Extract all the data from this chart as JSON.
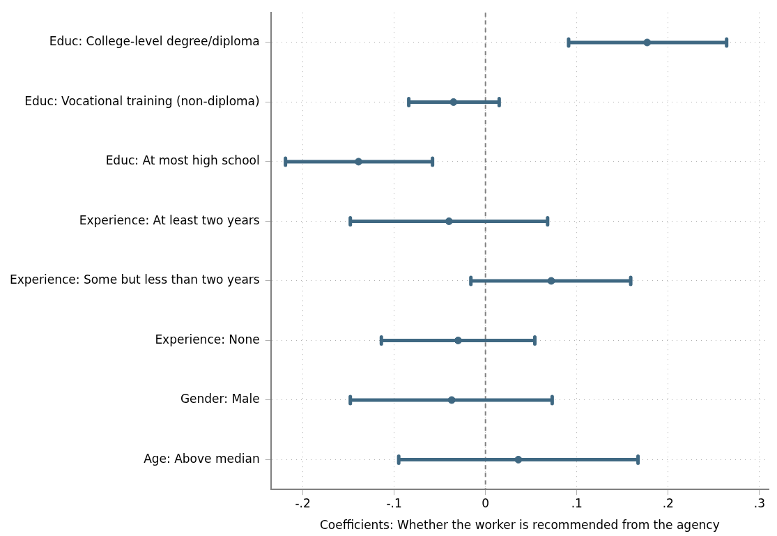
{
  "chart_data": {
    "type": "scatter",
    "orientation": "horizontal",
    "categories": [
      "Educ: College-level degree/diploma",
      "Educ: Vocational training (non-diploma)",
      "Educ: At most high school",
      "Experience: At least two years",
      "Experience: Some but less than two years",
      "Experience: None",
      "Gender: Male",
      "Age: Above median"
    ],
    "values": [
      0.177,
      -0.035,
      -0.139,
      -0.04,
      0.072,
      -0.03,
      -0.037,
      0.036
    ],
    "errors": [
      [
        0.091,
        0.264
      ],
      [
        -0.084,
        0.015
      ],
      [
        -0.219,
        -0.058
      ],
      [
        -0.148,
        0.068
      ],
      [
        -0.016,
        0.159
      ],
      [
        -0.114,
        0.054
      ],
      [
        -0.148,
        0.073
      ],
      [
        -0.095,
        0.167
      ]
    ],
    "color": "#3f6882",
    "xlabel": "Coefficients: Whether the worker is recommended from the agency",
    "xlim": [
      -0.235,
      0.31
    ],
    "xticks": [
      {
        "value": -0.2,
        "label": "-.2"
      },
      {
        "value": -0.1,
        "label": "-.1"
      },
      0,
      {
        "value": 0.1,
        "label": ".1"
      },
      {
        "value": 0.2,
        "label": ".2"
      },
      {
        "value": 0.3,
        "label": ".3"
      }
    ],
    "ref_lines": [
      {
        "axis": "x",
        "value": 0,
        "color": "#808080",
        "line_style": "dashed"
      }
    ],
    "grid": true,
    "legend": false,
    "marker": "circle"
  }
}
